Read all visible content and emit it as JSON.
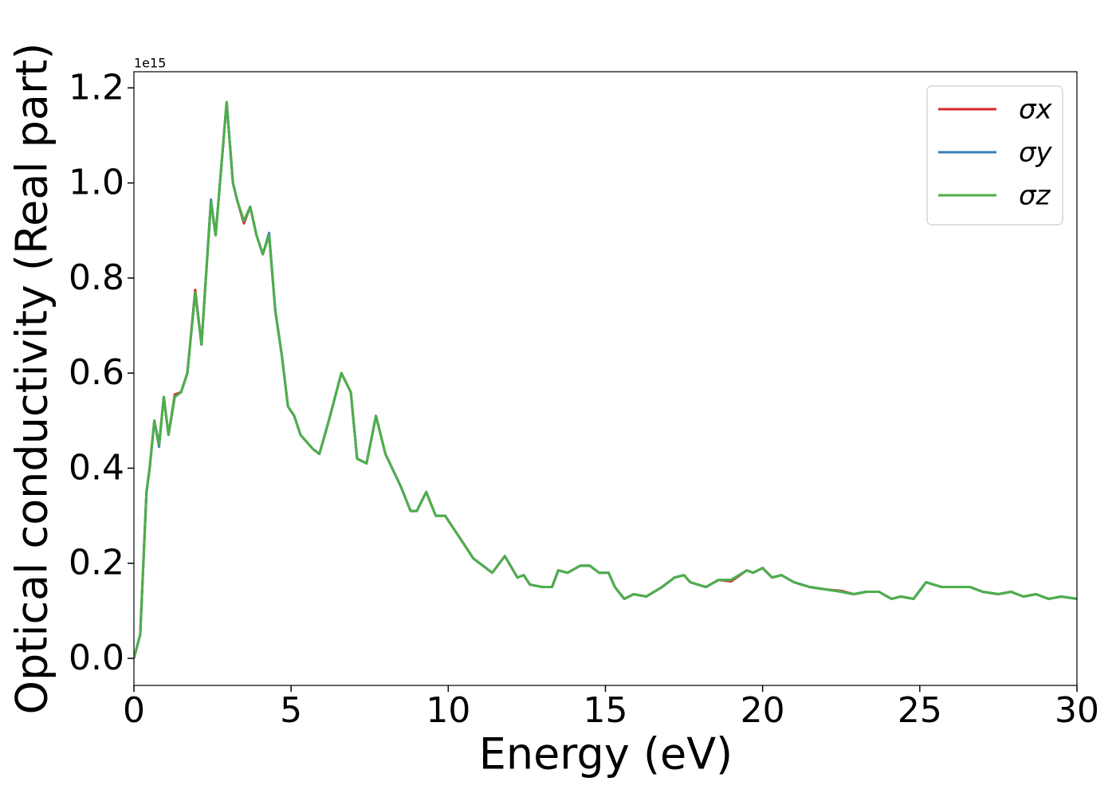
{
  "chart_data": {
    "type": "line",
    "x_label": "Energy (eV)",
    "y_label": "Optical conductivity (Real part)",
    "y_offset_label": "1e15",
    "xlim": [
      0,
      30
    ],
    "xticks": [
      0,
      5,
      10,
      15,
      20,
      25,
      30
    ],
    "ylim": [
      -0.057,
      1.234
    ],
    "yticks": [
      {
        "value": 0,
        "label": "0.0"
      },
      0.2,
      0.4,
      0.6,
      0.8,
      {
        "value": 1,
        "label": "1.0"
      },
      1.2
    ],
    "legend": "upper right",
    "x": [
      0,
      0.2,
      0.4,
      0.5,
      0.65,
      0.8,
      0.95,
      1.1,
      1.3,
      1.5,
      1.7,
      1.95,
      2.15,
      2.45,
      2.6,
      2.95,
      3.15,
      3.3,
      3.5,
      3.7,
      3.9,
      4.1,
      4.3,
      4.5,
      4.7,
      4.9,
      5.1,
      5.3,
      5.5,
      5.7,
      5.9,
      6.2,
      6.6,
      6.9,
      7.1,
      7.4,
      7.7,
      8.0,
      8.5,
      8.8,
      9.0,
      9.3,
      9.6,
      9.9,
      10.0,
      10.2,
      10.5,
      10.8,
      11.1,
      11.4,
      11.8,
      12.2,
      12.4,
      12.6,
      13.0,
      13.3,
      13.5,
      13.8,
      14.2,
      14.5,
      14.8,
      15.1,
      15.3,
      15.6,
      15.9,
      16.3,
      16.8,
      17.2,
      17.5,
      17.7,
      18.2,
      18.6,
      19.0,
      19.5,
      19.7,
      20.0,
      20.3,
      20.6,
      21.0,
      21.5,
      22.0,
      22.5,
      22.9,
      23.3,
      23.7,
      24.1,
      24.4,
      24.8,
      25.2,
      25.7,
      26.1,
      26.6,
      27.0,
      27.5,
      27.9,
      28.3,
      28.7,
      29.1,
      29.5,
      30.0
    ],
    "series": [
      {
        "name": "σx",
        "color": "#d62728",
        "values": [
          0.0,
          0.05,
          0.35,
          0.4,
          0.5,
          0.45,
          0.55,
          0.47,
          0.555,
          0.56,
          0.6,
          0.775,
          0.66,
          0.96,
          0.89,
          1.17,
          1.0,
          0.96,
          0.915,
          0.95,
          0.89,
          0.85,
          0.89,
          0.73,
          0.64,
          0.53,
          0.51,
          0.47,
          0.455,
          0.44,
          0.43,
          0.5,
          0.6,
          0.56,
          0.42,
          0.41,
          0.51,
          0.43,
          0.36,
          0.31,
          0.31,
          0.35,
          0.3,
          0.3,
          0.29,
          0.27,
          0.24,
          0.21,
          0.195,
          0.18,
          0.215,
          0.17,
          0.175,
          0.155,
          0.15,
          0.15,
          0.185,
          0.18,
          0.195,
          0.195,
          0.18,
          0.18,
          0.15,
          0.125,
          0.135,
          0.13,
          0.15,
          0.17,
          0.175,
          0.16,
          0.15,
          0.165,
          0.162,
          0.185,
          0.18,
          0.19,
          0.17,
          0.175,
          0.16,
          0.15,
          0.145,
          0.142,
          0.135,
          0.14,
          0.14,
          0.125,
          0.13,
          0.125,
          0.16,
          0.15,
          0.15,
          0.15,
          0.14,
          0.135,
          0.14,
          0.13,
          0.135,
          0.125,
          0.13,
          0.125
        ]
      },
      {
        "name": "σy",
        "color": "#377eb8",
        "values": [
          0.0,
          0.05,
          0.35,
          0.4,
          0.5,
          0.445,
          0.55,
          0.47,
          0.55,
          0.56,
          0.6,
          0.77,
          0.66,
          0.965,
          0.89,
          1.17,
          1.0,
          0.96,
          0.92,
          0.95,
          0.89,
          0.85,
          0.895,
          0.73,
          0.64,
          0.53,
          0.51,
          0.47,
          0.455,
          0.44,
          0.43,
          0.5,
          0.6,
          0.56,
          0.42,
          0.41,
          0.51,
          0.43,
          0.36,
          0.31,
          0.31,
          0.35,
          0.3,
          0.3,
          0.29,
          0.27,
          0.24,
          0.21,
          0.195,
          0.18,
          0.215,
          0.17,
          0.175,
          0.155,
          0.15,
          0.15,
          0.185,
          0.18,
          0.195,
          0.195,
          0.18,
          0.18,
          0.15,
          0.125,
          0.135,
          0.13,
          0.15,
          0.17,
          0.175,
          0.16,
          0.15,
          0.165,
          0.165,
          0.185,
          0.18,
          0.19,
          0.17,
          0.175,
          0.16,
          0.15,
          0.145,
          0.14,
          0.135,
          0.14,
          0.14,
          0.125,
          0.13,
          0.125,
          0.16,
          0.15,
          0.15,
          0.15,
          0.14,
          0.135,
          0.14,
          0.13,
          0.135,
          0.125,
          0.13,
          0.125
        ]
      },
      {
        "name": "σz",
        "color": "#4daf4a",
        "values": [
          0.0,
          0.05,
          0.35,
          0.4,
          0.5,
          0.45,
          0.55,
          0.47,
          0.55,
          0.56,
          0.6,
          0.77,
          0.66,
          0.96,
          0.89,
          1.17,
          1.0,
          0.96,
          0.92,
          0.95,
          0.89,
          0.85,
          0.89,
          0.73,
          0.64,
          0.53,
          0.51,
          0.47,
          0.455,
          0.44,
          0.43,
          0.5,
          0.6,
          0.56,
          0.42,
          0.41,
          0.51,
          0.43,
          0.36,
          0.31,
          0.31,
          0.35,
          0.3,
          0.3,
          0.29,
          0.27,
          0.24,
          0.21,
          0.195,
          0.18,
          0.215,
          0.17,
          0.175,
          0.155,
          0.15,
          0.15,
          0.185,
          0.18,
          0.195,
          0.195,
          0.18,
          0.18,
          0.15,
          0.125,
          0.135,
          0.13,
          0.15,
          0.17,
          0.175,
          0.16,
          0.15,
          0.165,
          0.165,
          0.185,
          0.18,
          0.19,
          0.17,
          0.175,
          0.16,
          0.15,
          0.145,
          0.14,
          0.135,
          0.14,
          0.14,
          0.125,
          0.13,
          0.125,
          0.16,
          0.15,
          0.15,
          0.15,
          0.14,
          0.135,
          0.14,
          0.13,
          0.135,
          0.125,
          0.13,
          0.125
        ]
      }
    ]
  }
}
